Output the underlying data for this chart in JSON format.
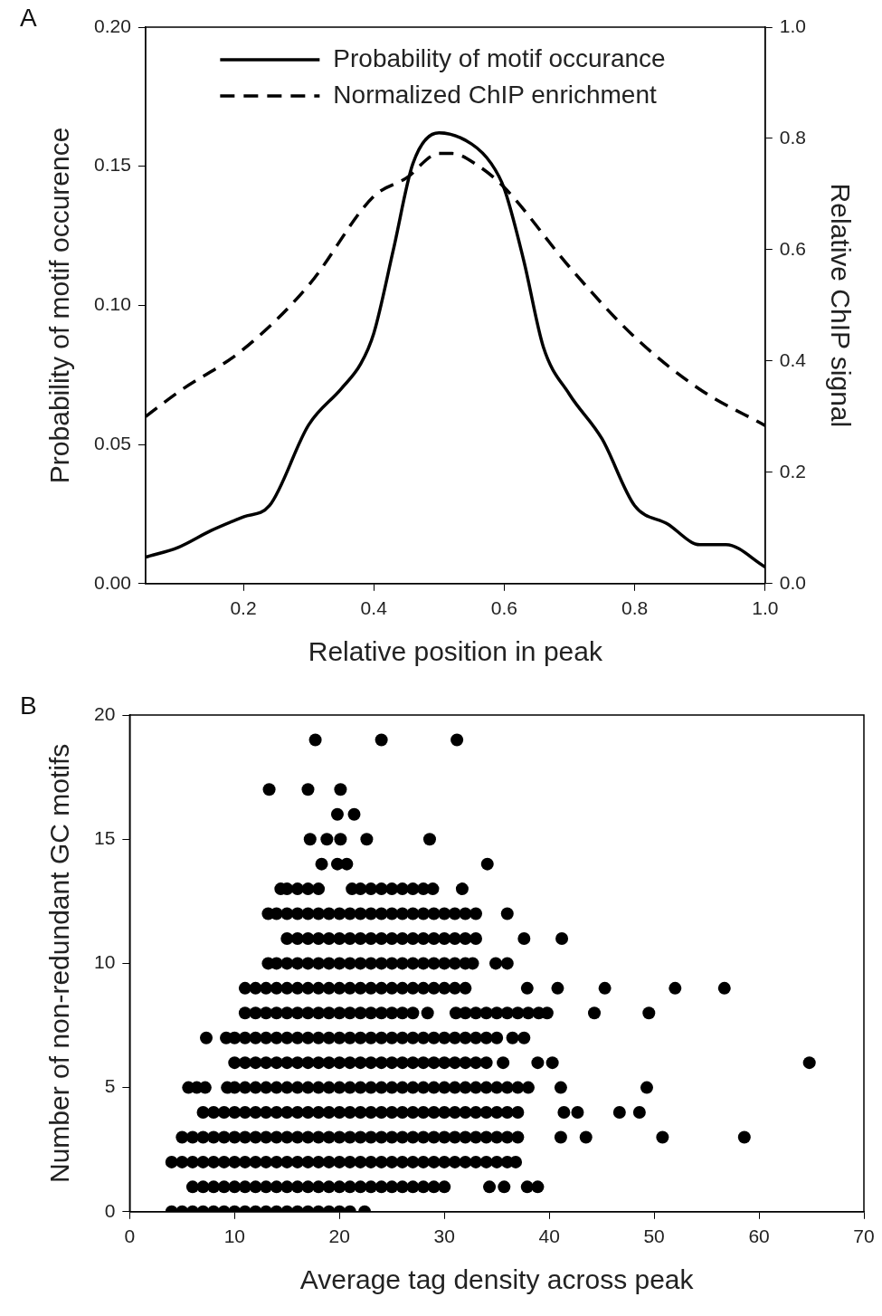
{
  "chart_data": [
    {
      "type": "line",
      "annotations": [
        "A"
      ],
      "xlabel": "Relative position in peak",
      "ylabel": "Probability of motif occurence",
      "y2label": "Relative ChIP signal",
      "xlim": [
        0.05,
        1.0
      ],
      "xticks": [
        0.2,
        0.4,
        0.6,
        0.8,
        {
          "value": 1.0,
          "label": "1.0"
        }
      ],
      "ylim": [
        0,
        0.2
      ],
      "yticks": [
        {
          "value": 0,
          "label": "0.00"
        },
        0.05,
        {
          "value": 0.1,
          "label": "0.10"
        },
        0.15,
        {
          "value": 0.2,
          "label": "0.20"
        }
      ],
      "y2lim": [
        0,
        1.0
      ],
      "y2ticks": [
        {
          "value": 0,
          "label": "0.0"
        },
        0.2,
        0.4,
        0.6,
        0.8,
        {
          "value": 1.0,
          "label": "1.0"
        }
      ],
      "grid": false,
      "legend": "top",
      "series": [
        {
          "name": "Probability of motif occurance",
          "color": "#000000",
          "line_style": "solid",
          "x": [
            0.05,
            0.1,
            0.15,
            0.2,
            0.24,
            0.3,
            0.35,
            0.38,
            0.4,
            0.43,
            0.46,
            0.5,
            0.55,
            0.58,
            0.6,
            0.63,
            0.66,
            0.7,
            0.75,
            0.8,
            0.85,
            0.9,
            0.94,
            1.0
          ],
          "values": [
            0.0095,
            0.013,
            0.019,
            0.024,
            0.028,
            0.057,
            0.07,
            0.079,
            0.09,
            0.12,
            0.151,
            0.162,
            0.158,
            0.151,
            0.142,
            0.116,
            0.085,
            0.068,
            0.052,
            0.028,
            0.0215,
            0.014,
            0.014,
            0.006
          ]
        },
        {
          "name": "Normalized ChIP enrichment",
          "color": "#000000",
          "line_style": "dashed",
          "axis": "y2",
          "x": [
            0.05,
            0.1,
            0.2,
            0.3,
            0.4,
            0.45,
            0.5,
            0.52,
            0.56,
            0.6,
            0.7,
            0.8,
            0.9,
            1.0
          ],
          "values": [
            0.3,
            0.344,
            0.421,
            0.536,
            0.696,
            0.729,
            0.773,
            0.773,
            0.751,
            0.712,
            0.569,
            0.443,
            0.349,
            0.284
          ]
        }
      ]
    },
    {
      "type": "scatter",
      "annotations": [
        "B"
      ],
      "xlabel": "Average tag density across peak",
      "ylabel": "Number of non-redundant GC motifs",
      "xlim": [
        0,
        70
      ],
      "xticks": [
        0,
        10,
        20,
        30,
        40,
        50,
        60,
        70
      ],
      "ylim": [
        0,
        20
      ],
      "yticks": [
        0,
        5,
        10,
        15,
        20
      ],
      "grid": false,
      "legend": false,
      "marker": "circle",
      "series": [
        {
          "color": "#000000",
          "x": [
            4,
            5,
            6,
            7,
            8,
            9,
            10,
            11,
            12,
            13,
            14,
            15,
            16,
            17,
            18,
            19,
            20,
            21,
            22.4
          ],
          "values": [
            0,
            0,
            0,
            0,
            0,
            0,
            0,
            0,
            0,
            0,
            0,
            0,
            0,
            0,
            0,
            0,
            0,
            0,
            0
          ]
        },
        {
          "color": "#000000",
          "x": [
            6,
            7,
            8,
            9,
            10,
            11,
            12,
            13,
            14,
            15,
            16,
            17,
            18,
            19,
            20,
            21,
            22,
            23,
            24,
            25,
            26,
            27,
            28,
            29,
            30,
            34.3,
            35.7,
            37.9,
            38.9
          ],
          "values": [
            1,
            1,
            1,
            1,
            1,
            1,
            1,
            1,
            1,
            1,
            1,
            1,
            1,
            1,
            1,
            1,
            1,
            1,
            1,
            1,
            1,
            1,
            1,
            1,
            1,
            1,
            1,
            1,
            1
          ]
        },
        {
          "color": "#000000",
          "x": [
            4,
            5,
            6,
            7,
            8,
            9,
            10,
            11,
            12,
            13,
            14,
            15,
            16,
            17,
            18,
            19,
            20,
            21,
            22,
            23,
            24,
            25,
            26,
            27,
            28,
            29,
            30,
            31,
            32,
            33,
            34,
            35,
            36,
            36.8
          ],
          "values": [
            2,
            2,
            2,
            2,
            2,
            2,
            2,
            2,
            2,
            2,
            2,
            2,
            2,
            2,
            2,
            2,
            2,
            2,
            2,
            2,
            2,
            2,
            2,
            2,
            2,
            2,
            2,
            2,
            2,
            2,
            2,
            2,
            2,
            2
          ]
        },
        {
          "color": "#000000",
          "x": [
            5,
            6,
            7,
            8,
            9,
            10,
            11,
            12,
            13,
            14,
            15,
            16,
            17,
            18,
            19,
            20,
            21,
            22,
            23,
            24,
            25,
            26,
            27,
            28,
            29,
            30,
            31,
            32,
            33,
            34,
            35,
            36,
            37,
            41.1,
            43.5,
            50.8,
            58.6
          ],
          "values": [
            3,
            3,
            3,
            3,
            3,
            3,
            3,
            3,
            3,
            3,
            3,
            3,
            3,
            3,
            3,
            3,
            3,
            3,
            3,
            3,
            3,
            3,
            3,
            3,
            3,
            3,
            3,
            3,
            3,
            3,
            3,
            3,
            3,
            3,
            3,
            3,
            3
          ]
        },
        {
          "color": "#000000",
          "x": [
            7,
            8,
            9,
            10,
            11,
            12,
            13,
            14,
            15,
            16,
            17,
            18,
            19,
            20,
            21,
            22,
            23,
            24,
            25,
            26,
            27,
            28,
            29,
            30,
            31,
            32,
            33,
            34,
            35,
            36,
            37,
            41.4,
            42.7,
            46.7,
            48.6
          ],
          "values": [
            4,
            4,
            4,
            4,
            4,
            4,
            4,
            4,
            4,
            4,
            4,
            4,
            4,
            4,
            4,
            4,
            4,
            4,
            4,
            4,
            4,
            4,
            4,
            4,
            4,
            4,
            4,
            4,
            4,
            4,
            4,
            4,
            4,
            4,
            4
          ]
        },
        {
          "color": "#000000",
          "x": [
            5.6,
            6.4,
            7.2,
            9.3,
            10,
            11,
            12,
            13,
            14,
            15,
            16,
            17,
            18,
            19,
            20,
            21,
            22,
            23,
            24,
            25,
            26,
            27,
            28,
            29,
            30,
            31,
            32,
            33,
            34,
            35,
            36,
            37,
            38,
            41.1,
            49.3
          ],
          "values": [
            5,
            5,
            5,
            5,
            5,
            5,
            5,
            5,
            5,
            5,
            5,
            5,
            5,
            5,
            5,
            5,
            5,
            5,
            5,
            5,
            5,
            5,
            5,
            5,
            5,
            5,
            5,
            5,
            5,
            5,
            5,
            5,
            5,
            5,
            5
          ]
        },
        {
          "color": "#000000",
          "x": [
            10,
            11,
            12,
            13,
            14,
            15,
            16,
            17,
            18,
            19,
            20,
            21,
            22,
            23,
            24,
            25,
            26,
            27,
            28,
            29,
            30,
            31,
            32,
            33,
            34,
            35.6,
            38.9,
            40.3,
            64.8
          ],
          "values": [
            6,
            6,
            6,
            6,
            6,
            6,
            6,
            6,
            6,
            6,
            6,
            6,
            6,
            6,
            6,
            6,
            6,
            6,
            6,
            6,
            6,
            6,
            6,
            6,
            6,
            6,
            6,
            6,
            6
          ]
        },
        {
          "color": "#000000",
          "x": [
            7.3,
            9.2,
            10,
            11,
            12,
            13,
            14,
            15,
            16,
            17,
            18,
            19,
            20,
            21,
            22,
            23,
            24,
            25,
            26,
            27,
            28,
            29,
            30,
            31,
            32,
            33,
            34,
            35,
            36.5,
            37.6
          ],
          "values": [
            7,
            7,
            7,
            7,
            7,
            7,
            7,
            7,
            7,
            7,
            7,
            7,
            7,
            7,
            7,
            7,
            7,
            7,
            7,
            7,
            7,
            7,
            7,
            7,
            7,
            7,
            7,
            7,
            7,
            7
          ]
        },
        {
          "color": "#000000",
          "x": [
            11,
            12,
            13,
            14,
            15,
            16,
            17,
            18,
            19,
            20,
            21,
            22,
            23,
            24,
            25,
            26,
            27,
            28.4,
            31.1,
            32,
            33,
            34,
            35,
            36,
            37,
            38,
            39,
            39.8,
            44.3,
            49.5
          ],
          "values": [
            8,
            8,
            8,
            8,
            8,
            8,
            8,
            8,
            8,
            8,
            8,
            8,
            8,
            8,
            8,
            8,
            8,
            8,
            8,
            8,
            8,
            8,
            8,
            8,
            8,
            8,
            8,
            8,
            8,
            8
          ]
        },
        {
          "color": "#000000",
          "x": [
            11,
            12,
            13,
            14,
            15,
            16,
            17,
            18,
            19,
            20,
            21,
            22,
            23,
            24,
            25,
            26,
            27,
            28,
            29,
            30,
            31,
            32,
            37.9,
            40.8,
            45.3,
            52,
            56.7
          ],
          "values": [
            9,
            9,
            9,
            9,
            9,
            9,
            9,
            9,
            9,
            9,
            9,
            9,
            9,
            9,
            9,
            9,
            9,
            9,
            9,
            9,
            9,
            9,
            9,
            9,
            9,
            9,
            9
          ]
        },
        {
          "color": "#000000",
          "x": [
            13.2,
            14,
            15,
            16,
            17,
            18,
            19,
            20,
            21,
            22,
            23,
            24,
            25,
            26,
            27,
            28,
            29,
            30,
            31,
            32,
            32.7,
            34.9,
            36
          ],
          "values": [
            10,
            10,
            10,
            10,
            10,
            10,
            10,
            10,
            10,
            10,
            10,
            10,
            10,
            10,
            10,
            10,
            10,
            10,
            10,
            10,
            10,
            10,
            10
          ]
        },
        {
          "color": "#000000",
          "x": [
            15,
            16,
            17,
            18,
            19,
            20,
            21,
            22,
            23,
            24,
            25,
            26,
            27,
            28,
            29,
            30,
            31,
            32,
            33,
            37.6,
            41.2
          ],
          "values": [
            11,
            11,
            11,
            11,
            11,
            11,
            11,
            11,
            11,
            11,
            11,
            11,
            11,
            11,
            11,
            11,
            11,
            11,
            11,
            11,
            11
          ]
        },
        {
          "color": "#000000",
          "x": [
            13.2,
            14,
            15,
            16,
            17,
            18,
            19,
            20,
            21,
            22,
            23,
            24,
            25,
            26,
            27,
            28,
            29,
            30,
            31,
            32,
            33,
            36
          ],
          "values": [
            12,
            12,
            12,
            12,
            12,
            12,
            12,
            12,
            12,
            12,
            12,
            12,
            12,
            12,
            12,
            12,
            12,
            12,
            12,
            12,
            12,
            12
          ]
        },
        {
          "color": "#000000",
          "x": [
            14.4,
            15,
            16,
            17,
            18,
            21.2,
            22,
            23,
            24,
            25,
            26,
            27,
            28,
            28.9,
            31.7
          ],
          "values": [
            13,
            13,
            13,
            13,
            13,
            13,
            13,
            13,
            13,
            13,
            13,
            13,
            13,
            13,
            13
          ]
        },
        {
          "color": "#000000",
          "x": [
            18.3,
            19.8,
            20.7,
            34.1
          ],
          "values": [
            14,
            14,
            14,
            14
          ]
        },
        {
          "color": "#000000",
          "x": [
            17.2,
            18.8,
            20.1,
            22.6,
            28.6
          ],
          "values": [
            15,
            15,
            15,
            15,
            15
          ]
        },
        {
          "color": "#000000",
          "x": [
            19.8,
            21.4
          ],
          "values": [
            16,
            16
          ]
        },
        {
          "color": "#000000",
          "x": [
            13.3,
            17,
            20.1
          ],
          "values": [
            17,
            17,
            17
          ]
        },
        {
          "color": "#000000",
          "x": [
            17.7,
            24,
            31.2
          ],
          "values": [
            19,
            19,
            19
          ]
        }
      ]
    }
  ]
}
